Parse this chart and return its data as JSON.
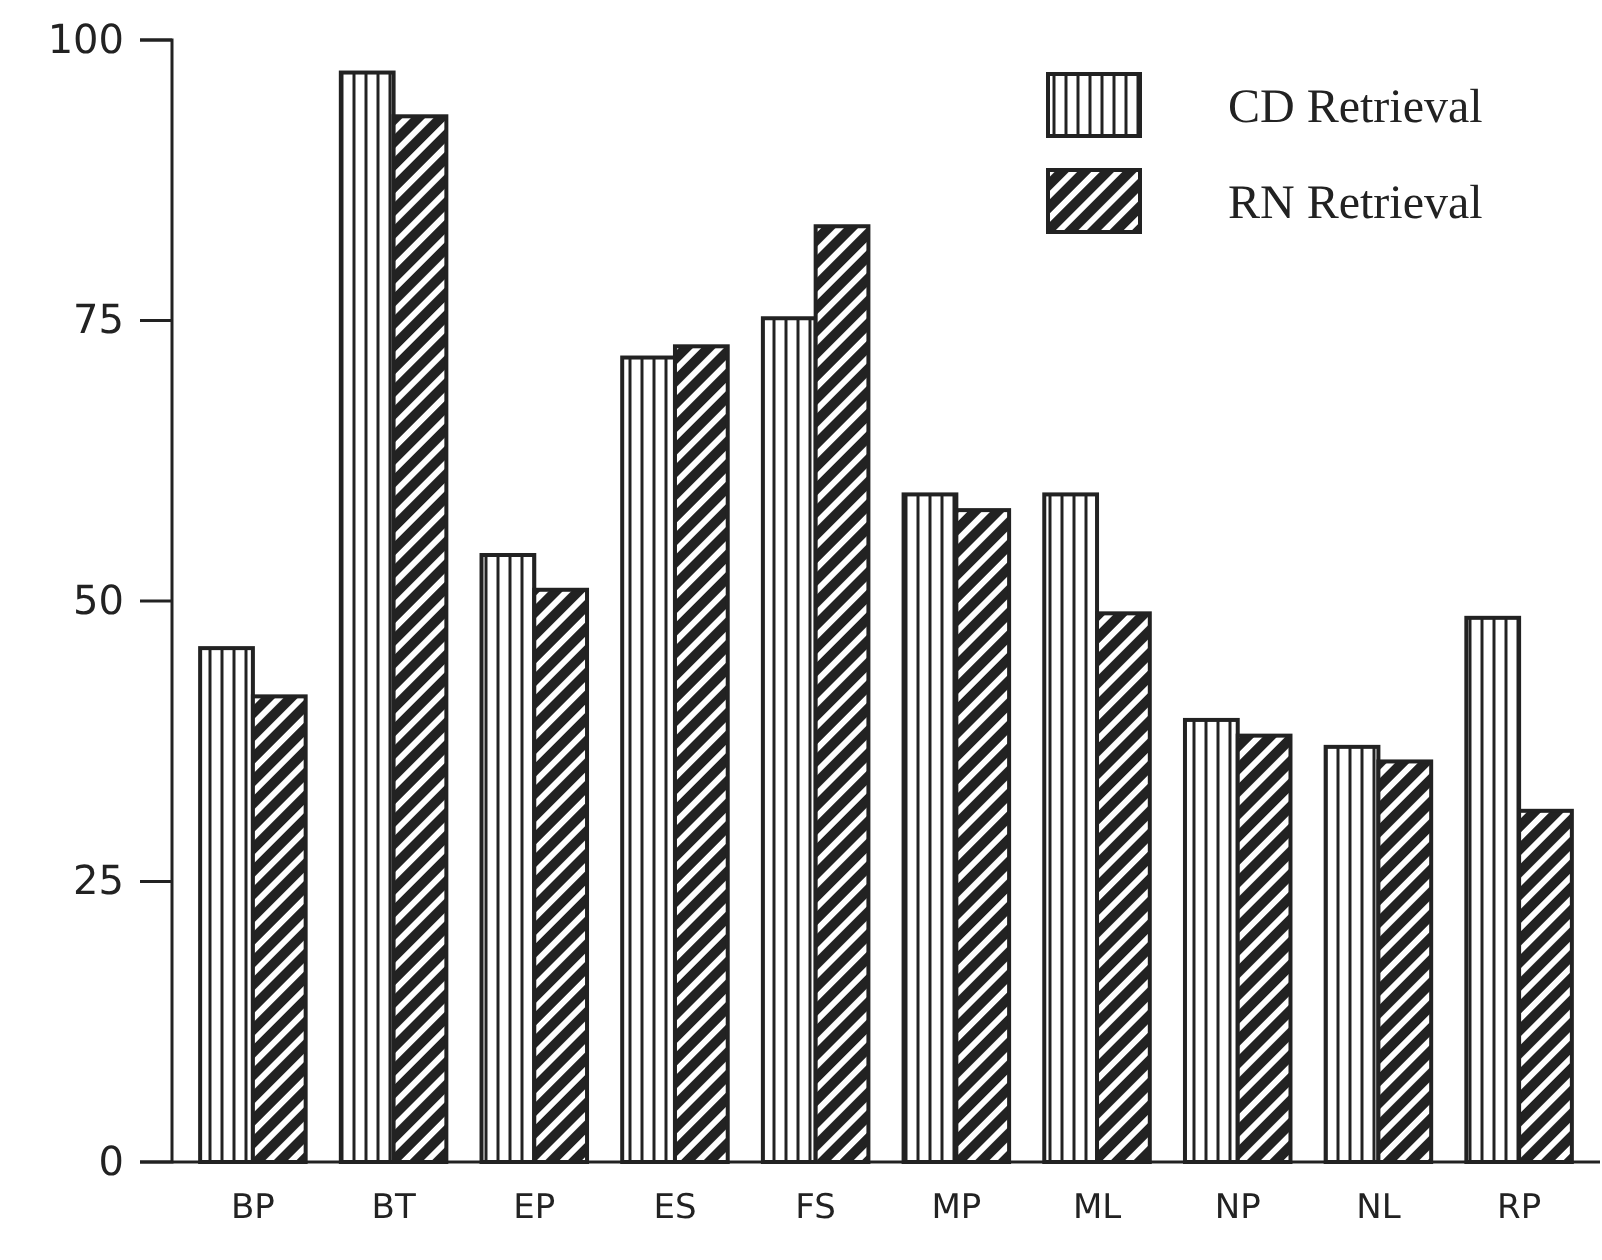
{
  "chart_data": {
    "type": "bar",
    "categories": [
      "BP",
      "BT",
      "EP",
      "ES",
      "FS",
      "MP",
      "ML",
      "NP",
      "NL",
      "RP"
    ],
    "series": [
      {
        "name": "CD Retrieval",
        "color": "#222222",
        "values": [
          45.8,
          97.1,
          54.1,
          71.7,
          75.2,
          59.5,
          59.5,
          39.4,
          37.0,
          48.5
        ]
      },
      {
        "name": "RN Retrieval",
        "color": "#222222",
        "values": [
          41.5,
          93.2,
          51.0,
          72.7,
          83.4,
          58.1,
          48.9,
          38.0,
          35.7,
          31.3
        ]
      }
    ],
    "ylim": [
      0,
      100
    ],
    "yticks": [
      0,
      25,
      50,
      75,
      100
    ],
    "grid": false,
    "legend": "top right"
  }
}
